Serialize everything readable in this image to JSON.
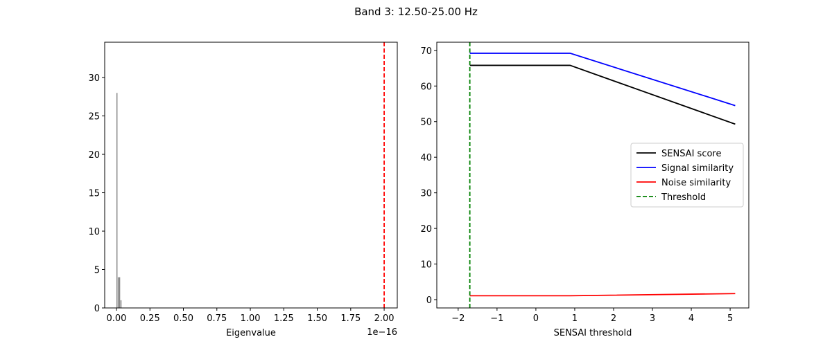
{
  "title": "Band 3: 12.50-25.00 Hz",
  "chart_data": [
    {
      "type": "histogram",
      "x_label": "Eigenvalue",
      "x_offset_label": "1e−16",
      "bins": [
        0.0,
        0.01,
        0.02,
        0.03,
        0.04
      ],
      "values": [
        28,
        4,
        4,
        1
      ],
      "color": "#808080",
      "vlines": [
        {
          "value": 2.0,
          "color": "red"
        }
      ],
      "xlim": [
        -0.088,
        2.098
      ],
      "xticks": [
        {
          "value": 0,
          "label": "0.00"
        },
        {
          "value": 0.25,
          "label": "0.25"
        },
        {
          "value": 0.5,
          "label": "0.50"
        },
        {
          "value": 0.75,
          "label": "0.75"
        },
        {
          "value": 1,
          "label": "1.00"
        },
        {
          "value": 1.25,
          "label": "1.25"
        },
        {
          "value": 1.5,
          "label": "1.50"
        },
        {
          "value": 1.75,
          "label": "1.75"
        },
        {
          "value": 2,
          "label": "2.00"
        }
      ],
      "ylim": [
        0,
        34.6
      ],
      "yticks": [
        0,
        5,
        10,
        15,
        20,
        25,
        30
      ]
    },
    {
      "type": "line",
      "x_label": "SENSAI threshold",
      "x": [
        -1.7,
        0.88,
        5.13
      ],
      "series": [
        {
          "name": "SENSAI score",
          "color": "black",
          "values": [
            65.8,
            65.8,
            49.3
          ]
        },
        {
          "name": "Signal similarity",
          "color": "blue",
          "values": [
            69.2,
            69.2,
            54.5
          ]
        },
        {
          "name": "Noise similarity",
          "color": "red",
          "values": [
            1.1,
            1.1,
            1.7
          ]
        }
      ],
      "vlines": [
        {
          "name": "Threshold",
          "value": -1.7,
          "color": "green"
        }
      ],
      "legend": "center right",
      "xlim": [
        -2.55,
        5.48
      ],
      "xticks": [
        {
          "value": -2,
          "label": "−2"
        },
        {
          "value": -1,
          "label": "−1"
        },
        0,
        1,
        2,
        3,
        4,
        5
      ],
      "ylim": [
        -2.33,
        72.3
      ],
      "yticks": [
        0,
        10,
        20,
        30,
        40,
        50,
        60,
        70
      ]
    }
  ]
}
